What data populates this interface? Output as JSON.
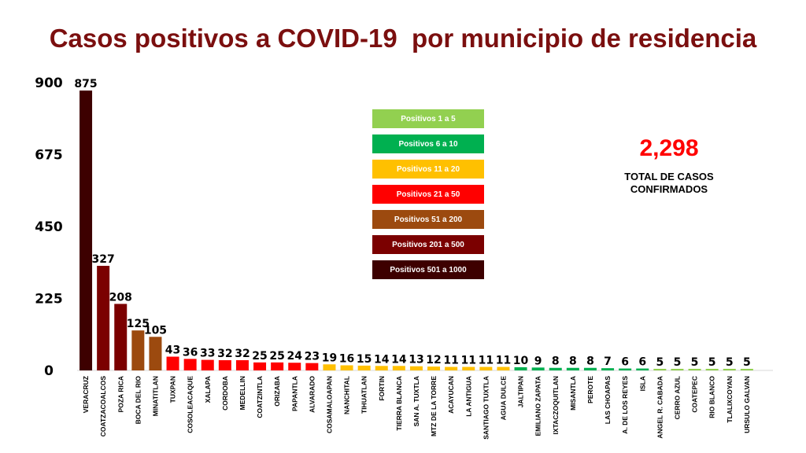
{
  "chart_data": {
    "type": "bar",
    "title": "Casos positivos a COVID-19  por municipio de residencia",
    "categories": [
      "VERACRUZ",
      "COATZACOALCOS",
      "POZA RICA",
      "BOCA DEL RIO",
      "MINATITLAN",
      "TUXPAN",
      "COSOLEACAQUE",
      "XALAPA",
      "CORDOBA",
      "MEDELLIN",
      "COATZINTLA",
      "ORIZABA",
      "PAPANTLA",
      "ALVARADO",
      "COSAMALOAPAN",
      "NANCHITAL",
      "TIHUATLAN",
      "FORTIN",
      "TIERRA BLANCA",
      "SAN A. TUXTLA",
      "MTZ DE LA TORRE",
      "ACAYUCAN",
      "LA ANTIGUA",
      "SANTIAGO TUXTLA",
      "AGUA DULCE",
      "JALTIPAN",
      "EMILIANO ZAPATA",
      "IXTACZOQUITLAN",
      "MISANTLA",
      "PEROTE",
      "LAS CHOAPAS",
      "A. DE LOS REYES",
      "ISLA",
      "ANGEL R. CABADA",
      "CERRO AZUL",
      "COATEPEC",
      "RIO BLANCO",
      "TLALIXCOYAN",
      "URSULO GALVAN"
    ],
    "values": [
      875,
      327,
      208,
      125,
      105,
      43,
      36,
      33,
      32,
      32,
      25,
      25,
      24,
      23,
      19,
      16,
      15,
      14,
      14,
      13,
      12,
      11,
      11,
      11,
      11,
      10,
      9,
      8,
      8,
      8,
      7,
      6,
      6,
      5,
      5,
      5,
      5,
      5,
      5
    ],
    "ylim": [
      0,
      900
    ],
    "yticks": [
      0,
      225,
      450,
      675,
      900
    ],
    "grid": false,
    "legend_placement": "center-top",
    "legend": [
      {
        "label": "Positivos 1 a 5",
        "min": 1,
        "max": 5,
        "color": "#92d050"
      },
      {
        "label": "Positivos 6 a 10",
        "min": 6,
        "max": 10,
        "color": "#00b050"
      },
      {
        "label": "Positivos 11 a 20",
        "min": 11,
        "max": 20,
        "color": "#ffc000"
      },
      {
        "label": "Positivos 21 a 50",
        "min": 21,
        "max": 50,
        "color": "#ff0000"
      },
      {
        "label": "Positivos 51 a 200",
        "min": 51,
        "max": 200,
        "color": "#9c4a0f"
      },
      {
        "label": "Positivos 201 a 500",
        "min": 201,
        "max": 500,
        "color": "#7b0000"
      },
      {
        "label": "Positivos 501 a 1000",
        "min": 501,
        "max": 1000,
        "color": "#3d0000"
      }
    ],
    "annotation": {
      "total": "2,298",
      "label_line1": "TOTAL DE CASOS",
      "label_line2": "CONFIRMADOS"
    }
  }
}
